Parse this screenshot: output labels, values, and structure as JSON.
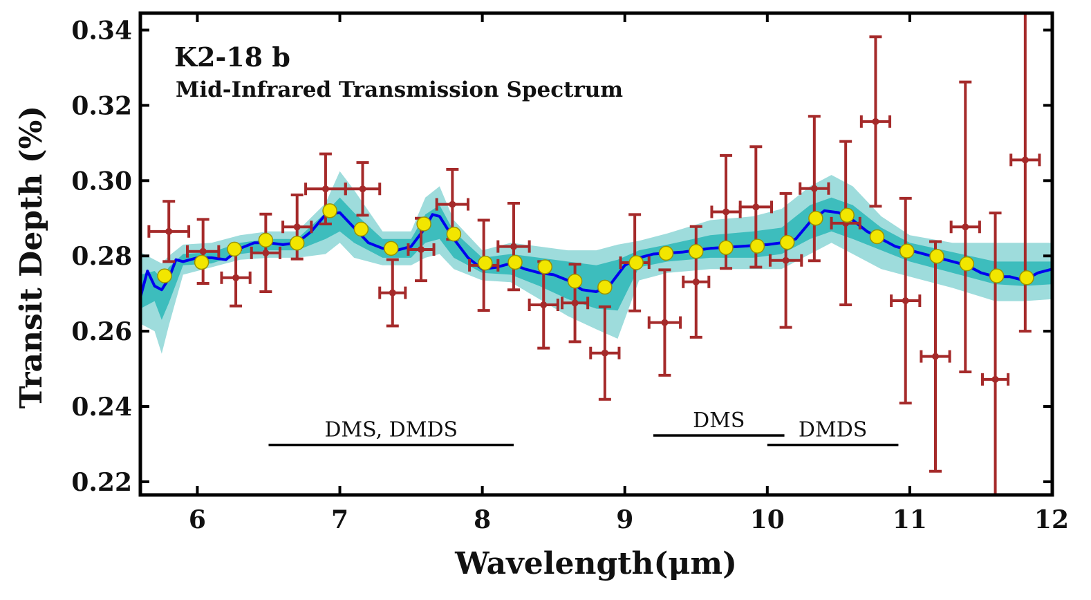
{
  "chart_data": {
    "type": "line",
    "title": "K2-18 b",
    "subtitle": "Mid-Infrared Transmission Spectrum",
    "xlabel": "Wavelength(μm)",
    "ylabel": "Transit Depth (%)",
    "xlim": [
      5.6,
      12.0
    ],
    "ylim": [
      0.2165,
      0.3445
    ],
    "xticks": [
      6,
      7,
      8,
      9,
      10,
      11,
      12
    ],
    "xtick_labels": [
      "6",
      "7",
      "8",
      "9",
      "10",
      "11",
      "12"
    ],
    "yticks": [
      0.22,
      0.24,
      0.26,
      0.28,
      0.3,
      0.32,
      0.34
    ],
    "ytick_labels": [
      "0.22",
      "0.24",
      "0.26",
      "0.28",
      "0.30",
      "0.32",
      "0.34"
    ],
    "grid": false,
    "colors": {
      "model_line": "#0000ee",
      "band_outer": "#9edcdc",
      "band_inner": "#3dbdbd",
      "observed": "#a52a2a",
      "binned_model": "#f2e600",
      "binned_model_edge": "#9a9400"
    },
    "model_curve": {
      "x": [
        5.6,
        5.65,
        5.7,
        5.75,
        5.8,
        5.85,
        5.9,
        6.0,
        6.1,
        6.2,
        6.3,
        6.4,
        6.5,
        6.6,
        6.7,
        6.8,
        6.9,
        7.0,
        7.1,
        7.2,
        7.3,
        7.4,
        7.5,
        7.6,
        7.65,
        7.7,
        7.8,
        7.9,
        8.0,
        8.1,
        8.2,
        8.3,
        8.4,
        8.5,
        8.6,
        8.7,
        8.8,
        8.9,
        9.0,
        9.1,
        9.2,
        9.4,
        9.6,
        9.8,
        10.0,
        10.1,
        10.2,
        10.3,
        10.4,
        10.5,
        10.6,
        10.7,
        10.8,
        10.9,
        11.0,
        11.2,
        11.4,
        11.5,
        11.6,
        11.7,
        11.8,
        11.9,
        12.0
      ],
      "y": [
        0.269,
        0.276,
        0.272,
        0.271,
        0.274,
        0.279,
        0.2785,
        0.2795,
        0.2795,
        0.279,
        0.282,
        0.2835,
        0.2835,
        0.283,
        0.2835,
        0.2865,
        0.291,
        0.2915,
        0.2875,
        0.2835,
        0.282,
        0.2815,
        0.2825,
        0.2875,
        0.291,
        0.2905,
        0.2845,
        0.2795,
        0.2765,
        0.277,
        0.278,
        0.2765,
        0.2755,
        0.275,
        0.2735,
        0.271,
        0.2705,
        0.2725,
        0.2775,
        0.2795,
        0.2805,
        0.281,
        0.282,
        0.2825,
        0.283,
        0.2835,
        0.2845,
        0.289,
        0.292,
        0.2915,
        0.2895,
        0.2865,
        0.2845,
        0.2825,
        0.2815,
        0.2795,
        0.2775,
        0.2755,
        0.2745,
        0.2745,
        0.2735,
        0.2755,
        0.2765
      ]
    },
    "model_band_outer": {
      "x": [
        5.6,
        5.7,
        5.75,
        5.8,
        5.9,
        6.1,
        6.3,
        6.5,
        6.7,
        6.9,
        7.0,
        7.1,
        7.3,
        7.5,
        7.6,
        7.7,
        7.8,
        8.0,
        8.2,
        8.4,
        8.6,
        8.8,
        8.95,
        9.1,
        9.3,
        9.6,
        9.9,
        10.1,
        10.3,
        10.45,
        10.6,
        10.8,
        11.0,
        11.3,
        11.6,
        11.8,
        12.0
      ],
      "upper": [
        0.281,
        0.279,
        0.278,
        0.28,
        0.283,
        0.2835,
        0.2855,
        0.2865,
        0.2865,
        0.294,
        0.3025,
        0.2975,
        0.2865,
        0.2865,
        0.2955,
        0.2985,
        0.2895,
        0.2815,
        0.2835,
        0.2825,
        0.2815,
        0.2815,
        0.283,
        0.284,
        0.286,
        0.2895,
        0.2905,
        0.2925,
        0.2985,
        0.3015,
        0.2985,
        0.2905,
        0.2855,
        0.2835,
        0.2835,
        0.2835,
        0.2835
      ],
      "lower": [
        0.262,
        0.26,
        0.254,
        0.2615,
        0.275,
        0.277,
        0.279,
        0.2795,
        0.2795,
        0.2805,
        0.2835,
        0.2795,
        0.2775,
        0.2775,
        0.2795,
        0.2805,
        0.2765,
        0.2735,
        0.273,
        0.2685,
        0.264,
        0.2605,
        0.258,
        0.2735,
        0.2755,
        0.2765,
        0.2765,
        0.2765,
        0.2805,
        0.2835,
        0.2805,
        0.2765,
        0.2745,
        0.2715,
        0.268,
        0.268,
        0.2685
      ]
    },
    "model_band_inner": {
      "x": [
        5.6,
        5.7,
        5.75,
        5.8,
        5.9,
        6.1,
        6.3,
        6.5,
        6.7,
        6.9,
        7.0,
        7.1,
        7.3,
        7.5,
        7.6,
        7.7,
        7.8,
        8.0,
        8.2,
        8.4,
        8.6,
        8.8,
        8.95,
        9.1,
        9.3,
        9.6,
        9.9,
        10.1,
        10.3,
        10.45,
        10.6,
        10.8,
        11.0,
        11.3,
        11.6,
        11.8,
        12.0
      ],
      "upper": [
        0.275,
        0.276,
        0.274,
        0.277,
        0.2805,
        0.281,
        0.2835,
        0.2845,
        0.2845,
        0.2915,
        0.2955,
        0.2915,
        0.2845,
        0.2845,
        0.291,
        0.2935,
        0.2865,
        0.2795,
        0.2805,
        0.2795,
        0.2785,
        0.2775,
        0.279,
        0.2815,
        0.283,
        0.2855,
        0.2865,
        0.2875,
        0.2935,
        0.2955,
        0.2935,
        0.2875,
        0.2835,
        0.281,
        0.2785,
        0.2785,
        0.2785
      ],
      "lower": [
        0.266,
        0.268,
        0.263,
        0.2675,
        0.2775,
        0.278,
        0.2805,
        0.2815,
        0.2815,
        0.2845,
        0.2865,
        0.2835,
        0.2795,
        0.2795,
        0.2835,
        0.2845,
        0.2795,
        0.2755,
        0.275,
        0.272,
        0.2685,
        0.266,
        0.2655,
        0.277,
        0.2785,
        0.2795,
        0.2795,
        0.2805,
        0.2845,
        0.2865,
        0.2845,
        0.2815,
        0.2785,
        0.2755,
        0.2725,
        0.272,
        0.2725
      ]
    },
    "observed": [
      {
        "x": 5.8,
        "y": 0.2865,
        "xerr": 0.14,
        "yerr": 0.008
      },
      {
        "x": 6.04,
        "y": 0.2812,
        "xerr": 0.11,
        "yerr": 0.0085
      },
      {
        "x": 6.27,
        "y": 0.2742,
        "xerr": 0.1,
        "yerr": 0.0075
      },
      {
        "x": 6.48,
        "y": 0.2808,
        "xerr": 0.1,
        "yerr": 0.0103
      },
      {
        "x": 6.7,
        "y": 0.2877,
        "xerr": 0.1,
        "yerr": 0.0085
      },
      {
        "x": 6.9,
        "y": 0.2978,
        "xerr": 0.14,
        "yerr": 0.0093
      },
      {
        "x": 7.16,
        "y": 0.2978,
        "xerr": 0.12,
        "yerr": 0.007
      },
      {
        "x": 7.37,
        "y": 0.2702,
        "xerr": 0.09,
        "yerr": 0.0088
      },
      {
        "x": 7.57,
        "y": 0.2817,
        "xerr": 0.09,
        "yerr": 0.0083
      },
      {
        "x": 7.79,
        "y": 0.2937,
        "xerr": 0.11,
        "yerr": 0.0093
      },
      {
        "x": 8.01,
        "y": 0.2775,
        "xerr": 0.1,
        "yerr": 0.012
      },
      {
        "x": 8.22,
        "y": 0.2825,
        "xerr": 0.11,
        "yerr": 0.0115
      },
      {
        "x": 8.43,
        "y": 0.267,
        "xerr": 0.1,
        "yerr": 0.0115
      },
      {
        "x": 8.65,
        "y": 0.2675,
        "xerr": 0.09,
        "yerr": 0.0103
      },
      {
        "x": 8.86,
        "y": 0.2542,
        "xerr": 0.1,
        "yerr": 0.0123
      },
      {
        "x": 9.07,
        "y": 0.2782,
        "xerr": 0.1,
        "yerr": 0.0128
      },
      {
        "x": 9.28,
        "y": 0.2623,
        "xerr": 0.11,
        "yerr": 0.014
      },
      {
        "x": 9.5,
        "y": 0.2731,
        "xerr": 0.09,
        "yerr": 0.0147
      },
      {
        "x": 9.71,
        "y": 0.2917,
        "xerr": 0.1,
        "yerr": 0.015
      },
      {
        "x": 9.92,
        "y": 0.293,
        "xerr": 0.11,
        "yerr": 0.016
      },
      {
        "x": 10.13,
        "y": 0.2788,
        "xerr": 0.11,
        "yerr": 0.0178
      },
      {
        "x": 10.33,
        "y": 0.2979,
        "xerr": 0.1,
        "yerr": 0.0192
      },
      {
        "x": 10.55,
        "y": 0.2887,
        "xerr": 0.1,
        "yerr": 0.0217
      },
      {
        "x": 10.76,
        "y": 0.3157,
        "xerr": 0.1,
        "yerr": 0.0225
      },
      {
        "x": 10.97,
        "y": 0.2681,
        "xerr": 0.1,
        "yerr": 0.0272
      },
      {
        "x": 11.18,
        "y": 0.2533,
        "xerr": 0.1,
        "yerr": 0.0305
      },
      {
        "x": 11.39,
        "y": 0.2877,
        "xerr": 0.1,
        "yerr": 0.0385
      },
      {
        "x": 11.6,
        "y": 0.2472,
        "xerr": 0.09,
        "yerr": 0.0442
      },
      {
        "x": 11.81,
        "y": 0.3055,
        "xerr": 0.1,
        "yerr": 0.0455
      }
    ],
    "binned_model": [
      {
        "x": 5.77,
        "y": 0.2747
      },
      {
        "x": 6.03,
        "y": 0.2783
      },
      {
        "x": 6.26,
        "y": 0.2818
      },
      {
        "x": 6.48,
        "y": 0.2842
      },
      {
        "x": 6.7,
        "y": 0.2834
      },
      {
        "x": 6.93,
        "y": 0.292
      },
      {
        "x": 7.15,
        "y": 0.2871
      },
      {
        "x": 7.36,
        "y": 0.282
      },
      {
        "x": 7.59,
        "y": 0.2885
      },
      {
        "x": 7.8,
        "y": 0.2858
      },
      {
        "x": 8.02,
        "y": 0.2781
      },
      {
        "x": 8.23,
        "y": 0.2783
      },
      {
        "x": 8.44,
        "y": 0.2771
      },
      {
        "x": 8.65,
        "y": 0.2733
      },
      {
        "x": 8.86,
        "y": 0.2717
      },
      {
        "x": 9.08,
        "y": 0.2782
      },
      {
        "x": 9.29,
        "y": 0.2807
      },
      {
        "x": 9.5,
        "y": 0.2812
      },
      {
        "x": 9.71,
        "y": 0.2822
      },
      {
        "x": 9.93,
        "y": 0.2826
      },
      {
        "x": 10.14,
        "y": 0.2836
      },
      {
        "x": 10.34,
        "y": 0.29
      },
      {
        "x": 10.56,
        "y": 0.2908
      },
      {
        "x": 10.77,
        "y": 0.2851
      },
      {
        "x": 10.98,
        "y": 0.2813
      },
      {
        "x": 11.19,
        "y": 0.2799
      },
      {
        "x": 11.4,
        "y": 0.2779
      },
      {
        "x": 11.61,
        "y": 0.2747
      },
      {
        "x": 11.82,
        "y": 0.2742
      }
    ],
    "annotations": [
      {
        "text": "DMS, DMDS",
        "x_start": 6.5,
        "x_end": 8.22,
        "y": 0.2298
      },
      {
        "text": "DMS",
        "x_start": 9.2,
        "x_end": 10.12,
        "y": 0.2323
      },
      {
        "text": "DMDS",
        "x_start": 10.0,
        "x_end": 10.92,
        "y": 0.2298
      }
    ]
  }
}
